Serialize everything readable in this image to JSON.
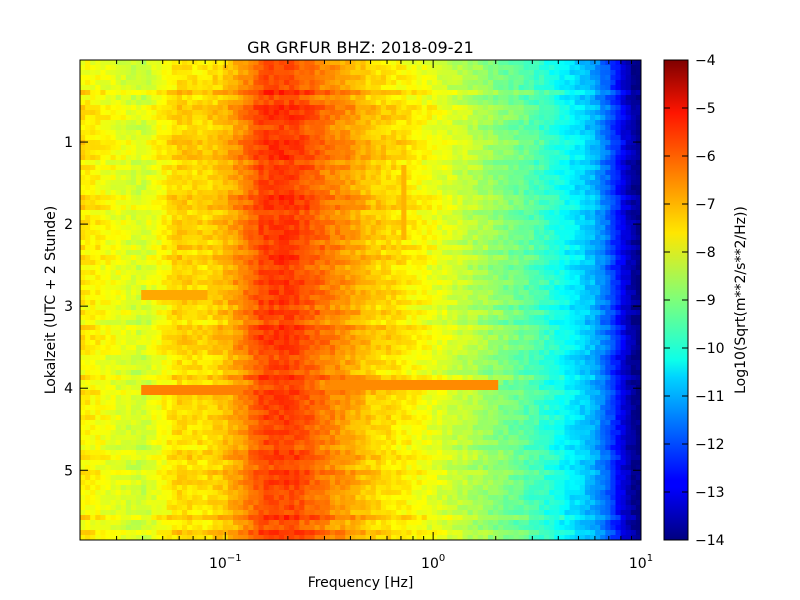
{
  "chart_data": {
    "type": "heatmap",
    "title": "GR GRFUR BHZ: 2018-09-21",
    "xlabel": "Frequency [Hz]",
    "ylabel": "Lokalzeit (UTC + 2 Stunde)",
    "x_scale": "log",
    "xlim": [
      0.02,
      10
    ],
    "ylim": [
      5.85,
      0.0
    ],
    "x_ticks": [
      {
        "value": 0.1,
        "base": "10",
        "exp": "−1"
      },
      {
        "value": 1,
        "base": "10",
        "exp": "0"
      },
      {
        "value": 10,
        "base": "10",
        "exp": "1"
      }
    ],
    "y_ticks": [
      {
        "value": 1,
        "label": "1"
      },
      {
        "value": 2,
        "label": "2"
      },
      {
        "value": 3,
        "label": "3"
      },
      {
        "value": 4,
        "label": "4"
      },
      {
        "value": 5,
        "label": "5"
      }
    ],
    "colormap": "jet",
    "colorbar": {
      "label": "Log10(Sqrt(m**2/s**2/Hz))",
      "range": [
        -14,
        -4
      ],
      "ticks": [
        "−4",
        "−5",
        "−6",
        "−7",
        "−8",
        "−9",
        "−10",
        "−11",
        "−12",
        "−13",
        "−14"
      ]
    },
    "spectrum_profile": {
      "frequencies": [
        0.02,
        0.04,
        0.06,
        0.08,
        0.1,
        0.13,
        0.15,
        0.2,
        0.25,
        0.3,
        0.4,
        0.5,
        0.7,
        1.0,
        1.5,
        2.0,
        3.0,
        4.0,
        5.0,
        6.0,
        7.0,
        8.0,
        9.0,
        10.0
      ],
      "values": [
        -7.5,
        -8.2,
        -7.3,
        -7.4,
        -7.1,
        -6.4,
        -5.9,
        -5.8,
        -6.1,
        -6.4,
        -6.8,
        -7.2,
        -7.5,
        -7.9,
        -8.4,
        -8.8,
        -9.4,
        -10.0,
        -10.5,
        -11.0,
        -11.8,
        -12.8,
        -13.6,
        -14.0
      ]
    },
    "features": [
      {
        "type": "horizontal_band",
        "time": 4.02,
        "freq_range": [
          0.04,
          0.14
        ],
        "value": -6.5
      },
      {
        "type": "horizontal_band",
        "time": 3.98,
        "freq_range": [
          0.3,
          2.0
        ],
        "value": -6.6
      },
      {
        "type": "horizontal_band",
        "time": 2.88,
        "freq_range": [
          0.04,
          0.08
        ],
        "value": -6.9
      },
      {
        "type": "vertical_band",
        "freq": 0.72,
        "time_range": [
          1.3,
          2.2
        ],
        "value": -7.0
      }
    ]
  }
}
